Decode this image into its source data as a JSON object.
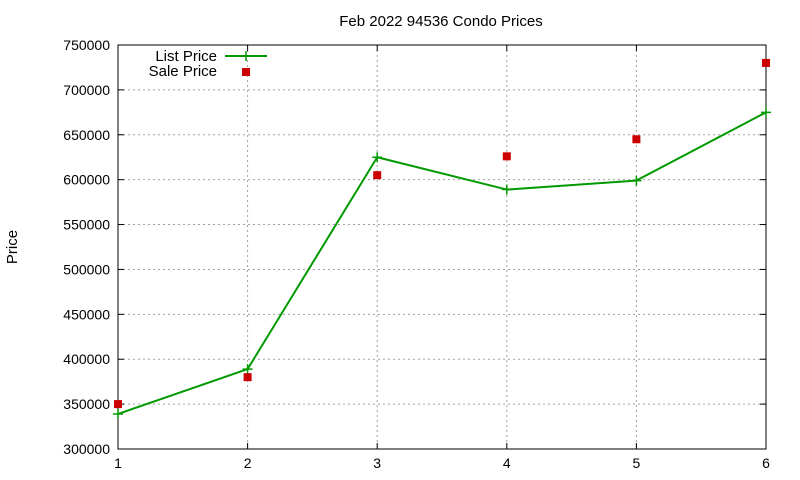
{
  "chart_data": {
    "type": "line",
    "title": "Feb 2022 94536 Condo Prices",
    "xlabel": "",
    "ylabel": "Price",
    "x": [
      1,
      2,
      3,
      4,
      5,
      6
    ],
    "xlim": [
      1,
      6
    ],
    "ylim": [
      300000,
      750000
    ],
    "yticks": [
      300000,
      350000,
      400000,
      450000,
      500000,
      550000,
      600000,
      650000,
      700000,
      750000
    ],
    "xticks": [
      1,
      2,
      3,
      4,
      5,
      6
    ],
    "grid": true,
    "legend_position": "top-left",
    "series": [
      {
        "name": "List Price",
        "style": "line-with-plus-markers",
        "color": "#009900",
        "values": [
          339000,
          389000,
          625000,
          589000,
          599000,
          675000
        ]
      },
      {
        "name": "Sale Price",
        "style": "square-markers",
        "color": "#cc0000",
        "values": [
          350000,
          380000,
          605000,
          626000,
          645000,
          730000
        ]
      }
    ]
  }
}
